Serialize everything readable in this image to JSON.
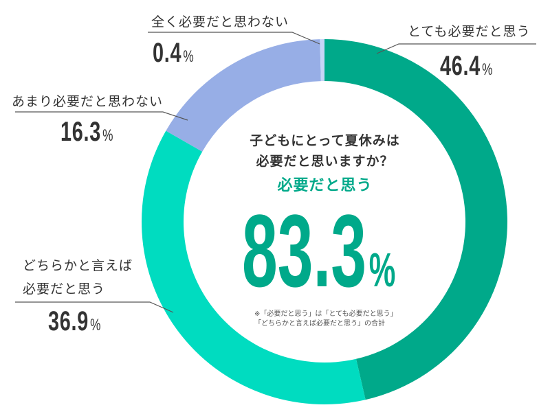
{
  "chart_data": {
    "type": "pie",
    "subtype": "donut",
    "title": "子どもにとって夏休みは必要だと思いますか？",
    "start_angle": "12 o'clock, clockwise",
    "slices": [
      {
        "label": "とても必要だと思う",
        "value": 46.4,
        "color": "#00a98a"
      },
      {
        "label": "どちらかと言えば必要だと思う",
        "value": 36.9,
        "color": "#00dcc0"
      },
      {
        "label": "あまり必要だと思わない",
        "value": 16.3,
        "color": "#97aee6"
      },
      {
        "label": "全く必要だと思わない",
        "value": 0.4,
        "color": "#c7d5f7"
      }
    ],
    "center_summary": {
      "label": "必要だと思う",
      "value": 83.3,
      "unit": "%"
    },
    "note_lines": [
      "※「必要だと思う」は「とても必要だと思う」",
      "「どちらかと言えば必要だと思う」の合計"
    ],
    "legend": "callout labels with leader lines"
  },
  "labels": {
    "very": {
      "text": "とても必要だと思う",
      "value": "46.4",
      "unit": "%"
    },
    "somewhat": {
      "line1": "どちらかと言えば",
      "line2": "必要だと思う",
      "value": "36.9",
      "unit": "%"
    },
    "notmuch": {
      "text": "あまり必要だと思わない",
      "value": "16.3",
      "unit": "%"
    },
    "notatall": {
      "text": "全く必要だと思わない",
      "value": "0.4",
      "unit": "%"
    }
  },
  "center": {
    "question_line1": "子どもにとって夏休みは",
    "question_line2": "必要だと思いますか？",
    "subtitle": "必要だと思う",
    "big_value": "83.3",
    "big_unit": "%",
    "note_line1": "※「必要だと思う」は「とても必要だと思う」",
    "note_line2": "「どちらかと言えば必要だと思う」の合計"
  },
  "colors": {
    "accent": "#00a98a",
    "text": "#333333",
    "leader": "#555555"
  }
}
